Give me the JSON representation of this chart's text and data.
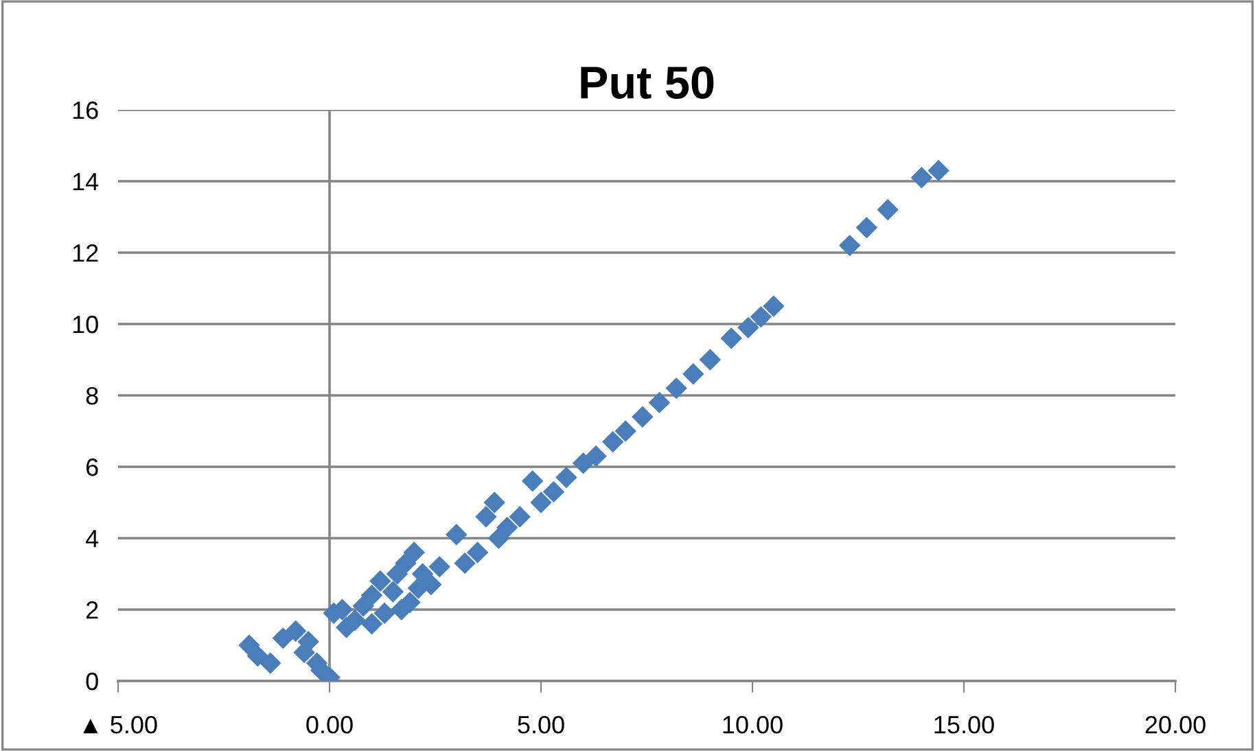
{
  "chart_data": {
    "type": "scatter",
    "title": "Put 50",
    "x": [
      -1.9,
      -1.7,
      -1.4,
      -1.1,
      -0.8,
      -0.6,
      -0.5,
      -0.3,
      -0.2,
      0.0,
      0.1,
      0.3,
      0.4,
      0.6,
      0.8,
      1.0,
      1.0,
      1.2,
      1.3,
      1.5,
      1.6,
      1.7,
      1.8,
      1.9,
      2.0,
      2.1,
      2.2,
      2.4,
      2.6,
      3.0,
      3.2,
      3.5,
      3.7,
      3.9,
      4.0,
      4.2,
      4.5,
      4.8,
      5.0,
      5.3,
      5.6,
      6.0,
      6.3,
      6.7,
      7.0,
      7.4,
      7.8,
      8.2,
      8.6,
      9.0,
      9.5,
      9.9,
      10.2,
      10.5,
      12.3,
      12.7,
      13.2,
      14.0,
      14.4
    ],
    "values": [
      1.0,
      0.7,
      0.5,
      1.2,
      1.4,
      0.8,
      1.1,
      0.5,
      0.3,
      0.1,
      1.9,
      2.0,
      1.5,
      1.7,
      2.1,
      2.4,
      1.6,
      2.8,
      1.9,
      2.5,
      3.0,
      2.0,
      3.3,
      2.2,
      3.6,
      2.6,
      3.0,
      2.7,
      3.2,
      4.1,
      3.3,
      3.6,
      4.6,
      5.0,
      4.0,
      4.3,
      4.6,
      5.6,
      5.0,
      5.3,
      5.7,
      6.1,
      6.3,
      6.7,
      7.0,
      7.4,
      7.8,
      8.2,
      8.6,
      9.0,
      9.6,
      9.9,
      10.2,
      10.5,
      12.2,
      12.7,
      13.2,
      14.1,
      14.3
    ],
    "color": "#4a7ebb",
    "marker": "diamond",
    "xlim": [
      -5,
      20
    ],
    "xticks": [
      {
        "value": -5,
        "label": "▲ 5.00"
      },
      {
        "value": 0,
        "label": "0.00"
      },
      {
        "value": 5,
        "label": "5.00"
      },
      {
        "value": 10,
        "label": "10.00"
      },
      {
        "value": 15,
        "label": "15.00"
      },
      {
        "value": 20,
        "label": "20.00"
      }
    ],
    "ylim": [
      0,
      16
    ],
    "yticks": [
      0,
      2,
      4,
      6,
      8,
      10,
      12,
      14,
      16
    ],
    "grid": "y",
    "ref_lines": [
      {
        "axis": "x",
        "value": 0,
        "color": "#868686"
      }
    ]
  }
}
